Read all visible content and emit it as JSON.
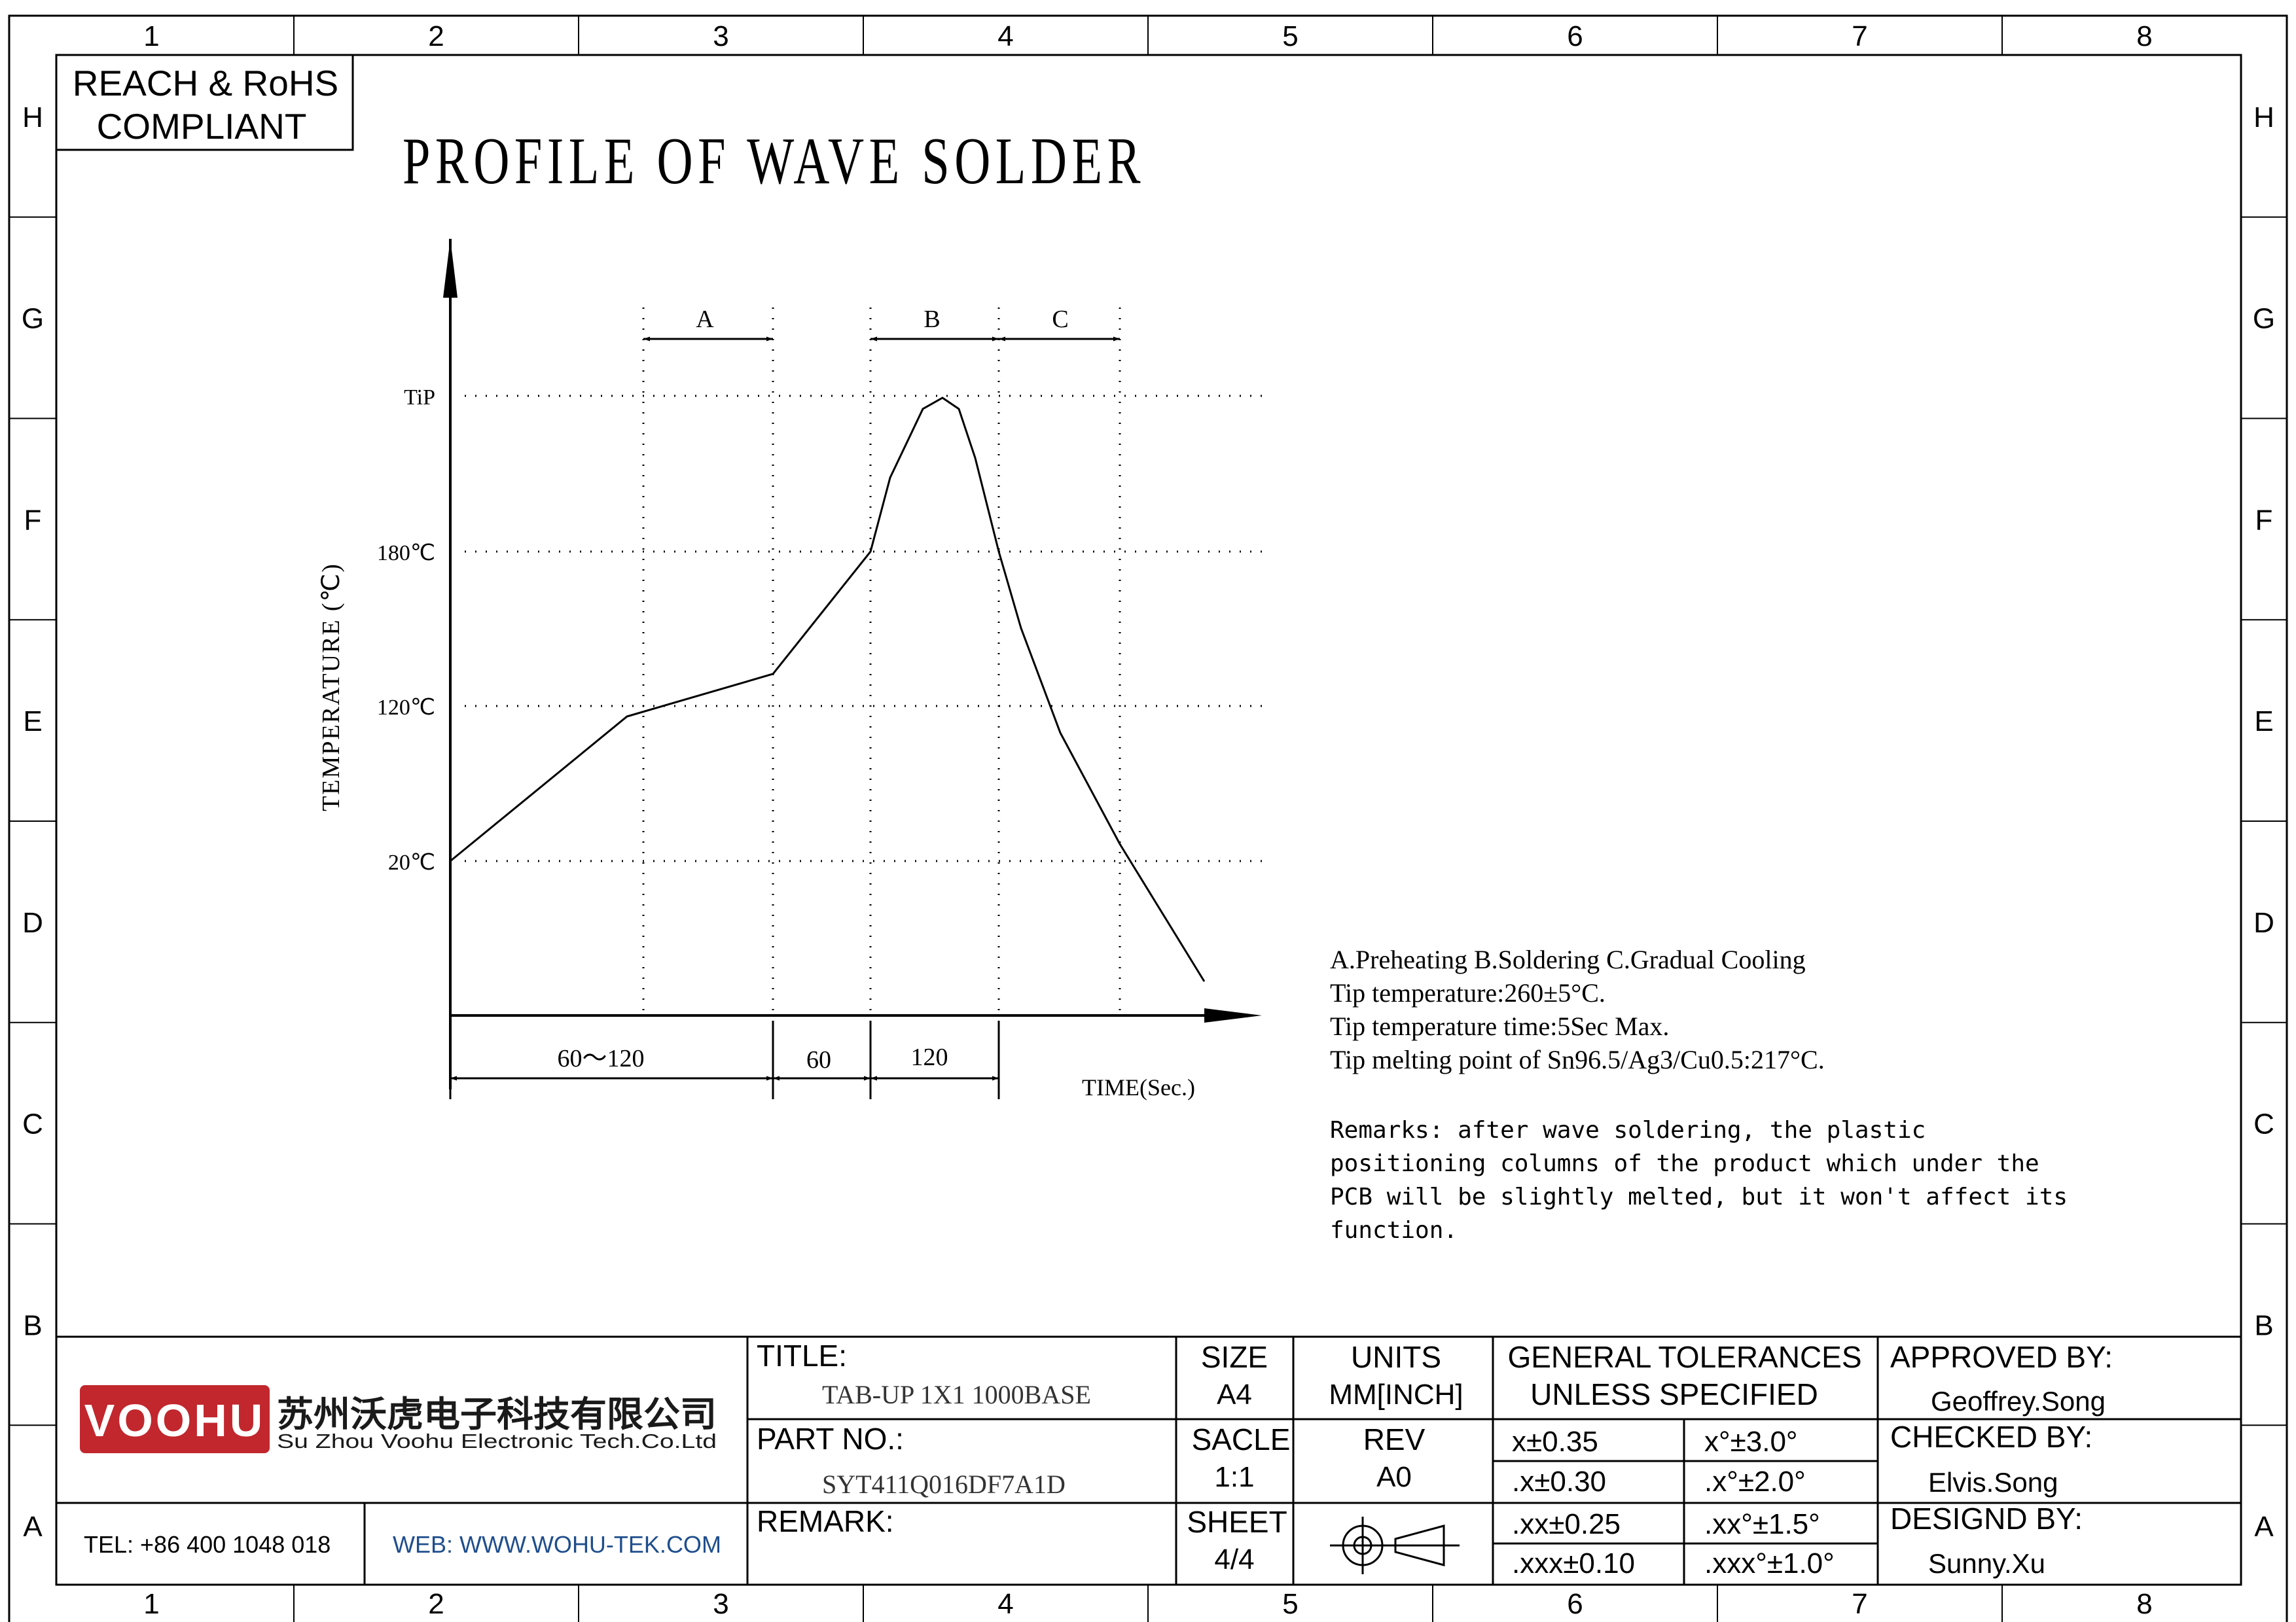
{
  "grid": {
    "columns": [
      "1",
      "2",
      "3",
      "4",
      "5",
      "6",
      "7",
      "8"
    ],
    "rows": [
      "H",
      "G",
      "F",
      "E",
      "D",
      "C",
      "B",
      "A"
    ]
  },
  "compliance": {
    "line1": "REACH & RoHS",
    "line2": "COMPLIANT"
  },
  "diagram": {
    "title": "PROFILE OF WAVE SOLDER",
    "y_axis_label": "TEMPERATURE (℃)",
    "x_axis_label": "TIME(Sec.)",
    "y_levels": [
      "TiP",
      "180℃",
      "120℃",
      "20℃"
    ],
    "zones": [
      "A",
      "B",
      "C"
    ],
    "durations": [
      "60～120",
      "60",
      "120"
    ]
  },
  "legend": {
    "zones_line": "A.Preheating  B.Soldering  C.Gradual Cooling",
    "tip_temperature": "Tip temperature:260±5°C.",
    "tip_time": "Tip temperature time:5Sec Max.",
    "melting_point": "Tip melting point of Sn96.5/Ag3/Cu0.5:217°C."
  },
  "remarks": [
    "Remarks: after wave soldering, the plastic",
    "positioning columns of the product  which under the",
    "PCB will be slightly melted, but it won't affect its",
    "function."
  ],
  "title_block": {
    "brand_name": "VOOHU",
    "company_cn": "苏州沃虎电子科技有限公司",
    "company_en": "Su Zhou Voohu Electronic Tech.Co.Ltd",
    "tel": "TEL: +86 400 1048 018",
    "web": "WEB: WWW.WOHU-TEK.COM",
    "title_label": "TITLE:",
    "title_value": "TAB-UP 1X1 1000BASE",
    "part_label": "PART NO.:",
    "part_value": "SYT411Q016DF7A1D",
    "remark_label": "REMARK:",
    "size_label": "SIZE",
    "size_value": "A4",
    "units_label": "UNITS",
    "units_value": "MM[INCH]",
    "scale_label": "SACLE",
    "scale_value": "1:1",
    "rev_label": "REV",
    "rev_value": "A0",
    "sheet_label": "SHEET",
    "sheet_value": "4/4",
    "tolerances_line1": "GENERAL TOLERANCES",
    "tolerances_line2": "UNLESS SPECIFIED",
    "tolerances": [
      [
        "x±0.35",
        "x°±3.0°"
      ],
      [
        ".x±0.30",
        ".x°±2.0°"
      ],
      [
        ".xx±0.25",
        ".xx°±1.5°"
      ],
      [
        ".xxx±0.10",
        ".xxx°±1.0°"
      ]
    ],
    "approved_label": "APPROVED BY:",
    "approved_name": "Geoffrey.Song",
    "checked_label": "CHECKED BY:",
    "checked_name": "Elvis.Song",
    "designed_label": "DESIGND BY:",
    "designed_name": "Sunny.Xu"
  },
  "colors": {
    "brand_red": "#c1272d",
    "web_blue": "#1f4e8c",
    "line": "#000000"
  }
}
